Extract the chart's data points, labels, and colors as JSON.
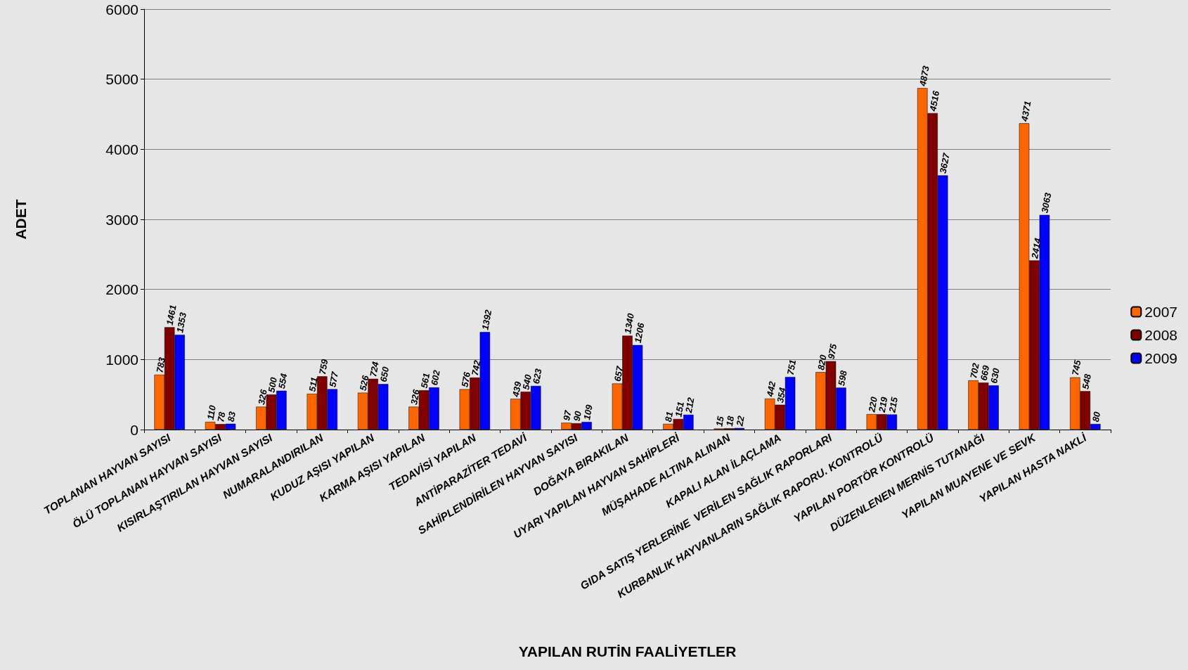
{
  "chart_data": {
    "type": "bar",
    "xlabel": "YAPILAN RUTİN FAALİYETLER",
    "ylabel": "ADET",
    "categories": [
      "TOPLANAN HAYVAN SAYISI",
      "ÖLÜ TOPLANAN HAYVAN SAYISI",
      "KISIRLAŞTIRILAN HAYVAN SAYISI",
      "NUMARALANDIRILAN",
      "KUDUZ AŞISI YAPILAN",
      "KARMA AŞISI YAPILAN",
      "TEDAVİSİ YAPILAN",
      "ANTİPARAZİTER TEDAVİ",
      "SAHİPLENDİRİLEN HAYVAN SAYISI",
      "DOĞAYA BIRAKILAN",
      "UYARI YAPILAN HAYVAN SAHİPLERİ",
      "MÜŞAHADE ALTINA ALINAN",
      "KAPALI ALAN İLAÇLAMA",
      "GIDA SATIŞ YERLERİNE  VERİLEN SAĞLIK RAPORLARI",
      "KURBANLIK HAYVANLARIN SAĞLIK RAPORU. KONTROLÜ",
      "YAPILAN PORTÖR KONTROLÜ",
      "DÜZENLENEN MERNİS TUTANAĞI",
      "YAPILAN MUAYENE VE SEVK",
      "YAPILAN HASTA NAKLİ"
    ],
    "series": [
      {
        "name": "2007",
        "color": "#ff6600",
        "values": [
          783,
          110,
          326,
          511,
          526,
          326,
          576,
          439,
          97,
          657,
          81,
          15,
          442,
          820,
          220,
          4873,
          702,
          4371,
          745
        ]
      },
      {
        "name": "2008",
        "color": "#800000",
        "values": [
          1461,
          78,
          500,
          759,
          724,
          561,
          742,
          540,
          90,
          1340,
          151,
          18,
          354,
          975,
          219,
          4516,
          669,
          2414,
          548
        ]
      },
      {
        "name": "2009",
        "color": "#0000ff",
        "values": [
          1353,
          83,
          554,
          577,
          650,
          602,
          1392,
          623,
          109,
          1206,
          212,
          22,
          751,
          598,
          215,
          3627,
          630,
          3063,
          80
        ]
      }
    ],
    "ylim": [
      0,
      6000
    ],
    "yticks": [
      0,
      1000,
      2000,
      3000,
      4000,
      5000,
      6000
    ],
    "grid": "y",
    "legend": "right",
    "data_labels": true
  }
}
